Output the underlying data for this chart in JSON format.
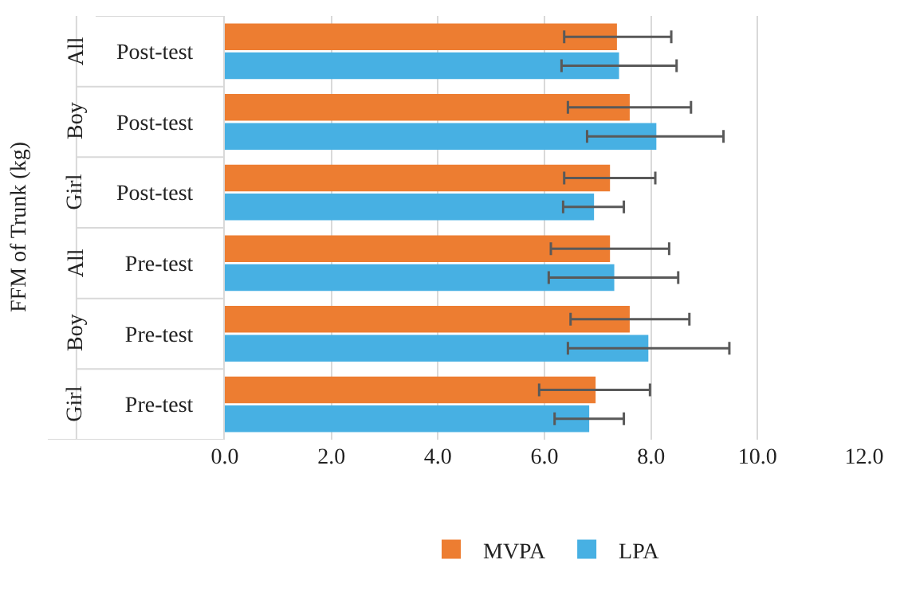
{
  "chart_data": {
    "type": "bar",
    "orientation": "horizontal",
    "ylabel": "FFM of Trunk (kg)",
    "categories": [
      "Post-test",
      "Post-test",
      "Post-test",
      "Pre-test",
      "Pre-test",
      "Pre-test"
    ],
    "annotations": [
      "All",
      "Boy",
      "Girl",
      "All",
      "Boy",
      "Girl"
    ],
    "series": [
      {
        "name": "MVPA",
        "color": "#ed7d31",
        "values": [
          7.36,
          7.6,
          7.23,
          7.23,
          7.6,
          6.96
        ],
        "errors": [
          [
            6.37,
            8.38
          ],
          [
            6.44,
            8.75
          ],
          [
            6.37,
            8.08
          ],
          [
            6.12,
            8.34
          ],
          [
            6.49,
            8.72
          ],
          [
            5.9,
            7.98
          ]
        ]
      },
      {
        "name": "LPA",
        "color": "#47b0e3",
        "values": [
          7.4,
          8.1,
          6.93,
          7.31,
          7.95,
          6.84
        ],
        "errors": [
          [
            6.32,
            8.48
          ],
          [
            6.8,
            9.36
          ],
          [
            6.35,
            7.49
          ],
          [
            6.08,
            8.51
          ],
          [
            6.44,
            9.47
          ],
          [
            6.19,
            7.49
          ]
        ]
      }
    ],
    "xlim": [
      0,
      12
    ],
    "xticks": [
      {
        "value": 0,
        "label": "0.0"
      },
      {
        "value": 2,
        "label": "2.0"
      },
      {
        "value": 4,
        "label": "4.0"
      },
      {
        "value": 6,
        "label": "6.0"
      },
      {
        "value": 8,
        "label": "8.0"
      },
      {
        "value": 10,
        "label": "10.0"
      },
      {
        "value": 12,
        "label": "12.0"
      }
    ],
    "grid": "x",
    "legend": "bottom"
  }
}
